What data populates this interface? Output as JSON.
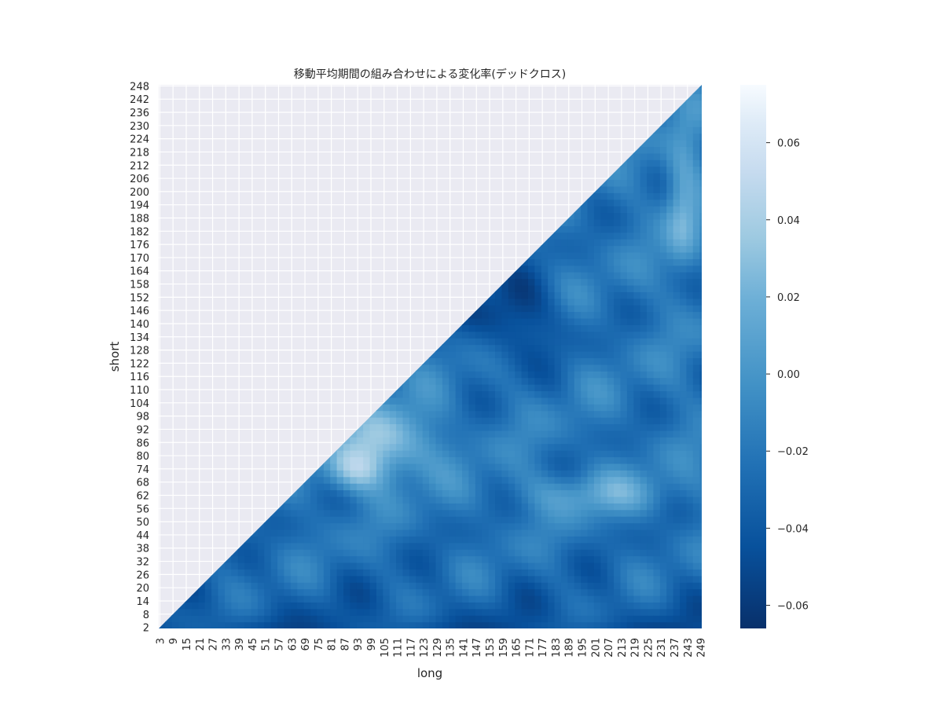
{
  "chart_data": {
    "type": "heatmap",
    "title": "移動平均期間の組み合わせによる変化率(デッドクロス)",
    "xlabel": "long",
    "ylabel": "short",
    "x_tick_labels": [
      "3",
      "9",
      "15",
      "21",
      "27",
      "33",
      "39",
      "45",
      "51",
      "57",
      "63",
      "69",
      "75",
      "81",
      "87",
      "93",
      "99",
      "105",
      "111",
      "117",
      "123",
      "129",
      "135",
      "141",
      "147",
      "153",
      "159",
      "165",
      "171",
      "177",
      "183",
      "189",
      "195",
      "201",
      "207",
      "213",
      "219",
      "225",
      "231",
      "237",
      "243",
      "249"
    ],
    "y_tick_labels": [
      "2",
      "8",
      "14",
      "20",
      "26",
      "32",
      "38",
      "44",
      "50",
      "56",
      "62",
      "68",
      "74",
      "80",
      "86",
      "92",
      "98",
      "104",
      "110",
      "116",
      "122",
      "128",
      "134",
      "140",
      "146",
      "152",
      "158",
      "164",
      "170",
      "176",
      "182",
      "188",
      "194",
      "200",
      "206",
      "212",
      "218",
      "224",
      "230",
      "236",
      "242",
      "248"
    ],
    "x_range": [
      3,
      249
    ],
    "y_range": [
      2,
      248
    ],
    "mask": "upper-left triangle masked (short >= long)",
    "colormap": "Blues_r",
    "vmin": -0.066,
    "vmax": 0.075,
    "colorbar_ticks": [
      "0.06",
      "0.04",
      "0.02",
      "0.00",
      "−0.02",
      "−0.04",
      "−0.06"
    ],
    "colorbar_tick_values": [
      0.06,
      0.04,
      0.02,
      0.0,
      -0.02,
      -0.04,
      -0.06
    ],
    "grid": true,
    "values_note": "dense continuous field; values range approx -0.066 to 0.075"
  }
}
